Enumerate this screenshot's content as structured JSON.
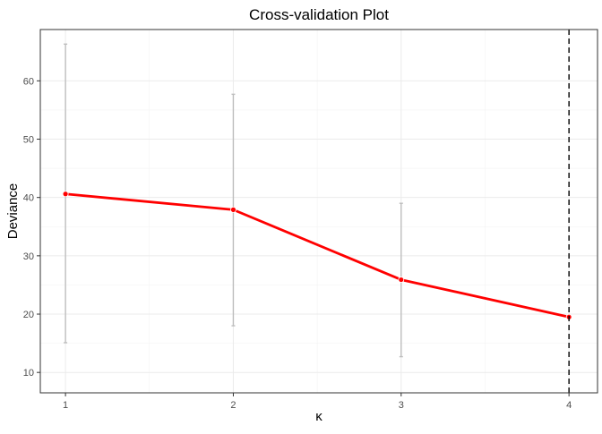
{
  "chart_data": {
    "type": "line",
    "title": "Cross-validation Plot",
    "xlabel": "κ",
    "ylabel": "Deviance",
    "x": [
      1,
      2,
      3,
      4
    ],
    "xticks": [
      "1",
      "2",
      "3",
      "4"
    ],
    "yticks": [
      10,
      20,
      30,
      40,
      50,
      60
    ],
    "xlim": [
      0.85,
      4.17
    ],
    "ylim": [
      6.5,
      68.8
    ],
    "series": [
      {
        "values": [
          40.6,
          37.9,
          25.9,
          19.5
        ],
        "lower": [
          15.1,
          18.0,
          12.7,
          null
        ],
        "upper": [
          66.3,
          57.7,
          39.0,
          null
        ],
        "color": "#ff0000"
      }
    ],
    "errorbar_color": "#bebebe",
    "vline": {
      "x": 4,
      "style": "dashed",
      "color": "#000000"
    },
    "grid": true,
    "legend": "none"
  }
}
